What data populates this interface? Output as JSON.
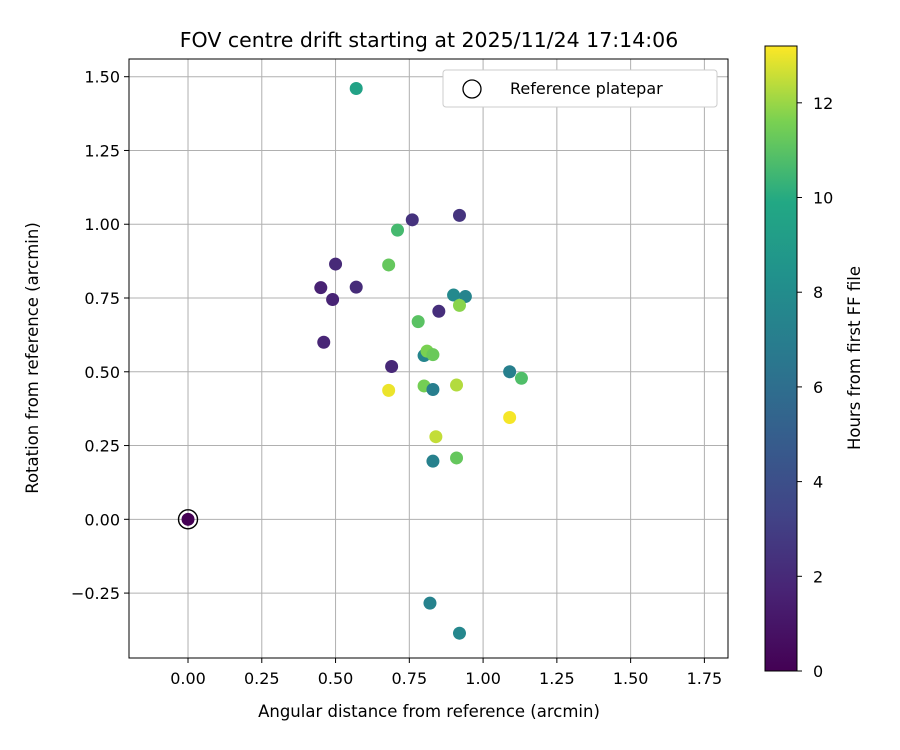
{
  "chart_data": {
    "type": "scatter",
    "title": "FOV centre drift starting at 2025/11/24 17:14:06",
    "xlabel": "Angular distance from reference (arcmin)",
    "ylabel": "Rotation from reference (arcmin)",
    "xlim": [
      -0.2,
      1.83
    ],
    "ylim": [
      -0.47,
      1.56
    ],
    "xticks": [
      0.0,
      0.25,
      0.5,
      0.75,
      1.0,
      1.25,
      1.5,
      1.75
    ],
    "xtick_labels": [
      "0.00",
      "0.25",
      "0.50",
      "0.75",
      "1.00",
      "1.25",
      "1.50",
      "1.75"
    ],
    "yticks": [
      -0.25,
      0.0,
      0.25,
      0.5,
      0.75,
      1.0,
      1.25,
      1.5
    ],
    "ytick_labels": [
      "−0.25",
      "0.00",
      "0.25",
      "0.50",
      "0.75",
      "1.00",
      "1.25",
      "1.50"
    ],
    "grid": true,
    "legend": {
      "position": "upper-right",
      "entries": [
        "Reference platepar"
      ]
    },
    "reference_point": {
      "x": 0.0,
      "y": 0.0,
      "label": "Reference platepar"
    },
    "colorbar": {
      "label": "Hours from first FF file",
      "colormap": "viridis",
      "range": [
        0,
        13.2
      ],
      "ticks": [
        0,
        2,
        4,
        6,
        8,
        10,
        12
      ],
      "tick_labels": [
        "0",
        "2",
        "4",
        "6",
        "8",
        "10",
        "12"
      ]
    },
    "points": [
      {
        "x": 0.0,
        "y": 0.0,
        "hours": 0.0
      },
      {
        "x": 0.45,
        "y": 0.785,
        "hours": 1.6
      },
      {
        "x": 0.46,
        "y": 0.6,
        "hours": 1.8
      },
      {
        "x": 0.49,
        "y": 0.745,
        "hours": 1.7
      },
      {
        "x": 0.5,
        "y": 0.865,
        "hours": 2.0
      },
      {
        "x": 0.57,
        "y": 0.787,
        "hours": 2.1
      },
      {
        "x": 0.69,
        "y": 0.518,
        "hours": 1.9
      },
      {
        "x": 0.76,
        "y": 1.015,
        "hours": 2.4
      },
      {
        "x": 0.85,
        "y": 0.705,
        "hours": 2.2
      },
      {
        "x": 0.92,
        "y": 1.03,
        "hours": 2.5
      },
      {
        "x": 0.57,
        "y": 1.46,
        "hours": 9.5
      },
      {
        "x": 0.71,
        "y": 0.98,
        "hours": 10.6
      },
      {
        "x": 0.68,
        "y": 0.862,
        "hours": 11.2
      },
      {
        "x": 0.78,
        "y": 0.67,
        "hours": 11.0
      },
      {
        "x": 0.8,
        "y": 0.555,
        "hours": 7.5
      },
      {
        "x": 0.81,
        "y": 0.57,
        "hours": 11.6
      },
      {
        "x": 0.83,
        "y": 0.558,
        "hours": 11.3
      },
      {
        "x": 0.8,
        "y": 0.452,
        "hours": 11.5
      },
      {
        "x": 0.83,
        "y": 0.44,
        "hours": 7.0
      },
      {
        "x": 0.68,
        "y": 0.437,
        "hours": 13.0
      },
      {
        "x": 0.84,
        "y": 0.28,
        "hours": 12.5
      },
      {
        "x": 0.83,
        "y": 0.197,
        "hours": 7.2
      },
      {
        "x": 0.9,
        "y": 0.76,
        "hours": 7.8
      },
      {
        "x": 0.94,
        "y": 0.755,
        "hours": 7.4
      },
      {
        "x": 0.92,
        "y": 0.725,
        "hours": 11.8
      },
      {
        "x": 0.91,
        "y": 0.455,
        "hours": 12.3
      },
      {
        "x": 0.91,
        "y": 0.208,
        "hours": 11.2
      },
      {
        "x": 1.09,
        "y": 0.5,
        "hours": 7.1
      },
      {
        "x": 1.13,
        "y": 0.478,
        "hours": 10.8
      },
      {
        "x": 1.09,
        "y": 0.345,
        "hours": 13.1
      },
      {
        "x": 0.82,
        "y": -0.284,
        "hours": 7.3
      },
      {
        "x": 0.92,
        "y": -0.386,
        "hours": 7.6
      }
    ]
  }
}
